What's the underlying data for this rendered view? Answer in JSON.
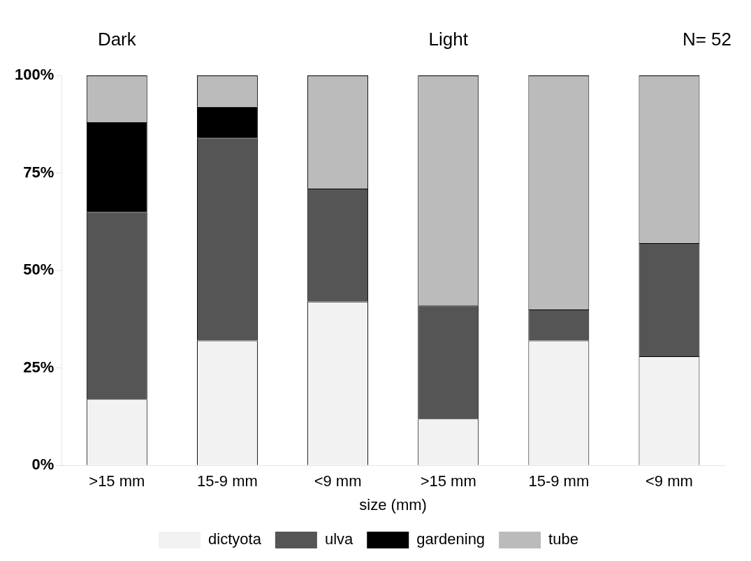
{
  "chart_data": {
    "type": "bar",
    "stacked": true,
    "xlabel": "size (mm)",
    "categories": [
      ">15 mm",
      "15-9 mm",
      "<9 mm",
      ">15 mm",
      "15-9 mm",
      "<9 mm"
    ],
    "series": [
      {
        "name": "dictyota",
        "color": "#f2f2f2",
        "values": [
          17,
          32,
          42,
          12,
          32,
          28
        ]
      },
      {
        "name": "ulva",
        "color": "#555555",
        "values": [
          48,
          52,
          29,
          29,
          8,
          29
        ]
      },
      {
        "name": "gardening",
        "color": "#000000",
        "values": [
          23,
          8,
          0,
          0,
          0,
          0
        ]
      },
      {
        "name": "tube",
        "color": "#bbbbbb",
        "values": [
          12,
          8,
          29,
          59,
          60,
          43
        ]
      }
    ],
    "ylim": [
      0,
      100
    ],
    "yticks": [
      {
        "value": 0,
        "label": "0%"
      },
      {
        "value": 25,
        "label": "25%"
      },
      {
        "value": 50,
        "label": "50%"
      },
      {
        "value": 75,
        "label": "75%"
      },
      {
        "value": 100,
        "label": "100%"
      }
    ],
    "grid": false,
    "legend": "bottom",
    "annotations": [
      "Dark",
      "Light",
      "N= 52"
    ]
  }
}
